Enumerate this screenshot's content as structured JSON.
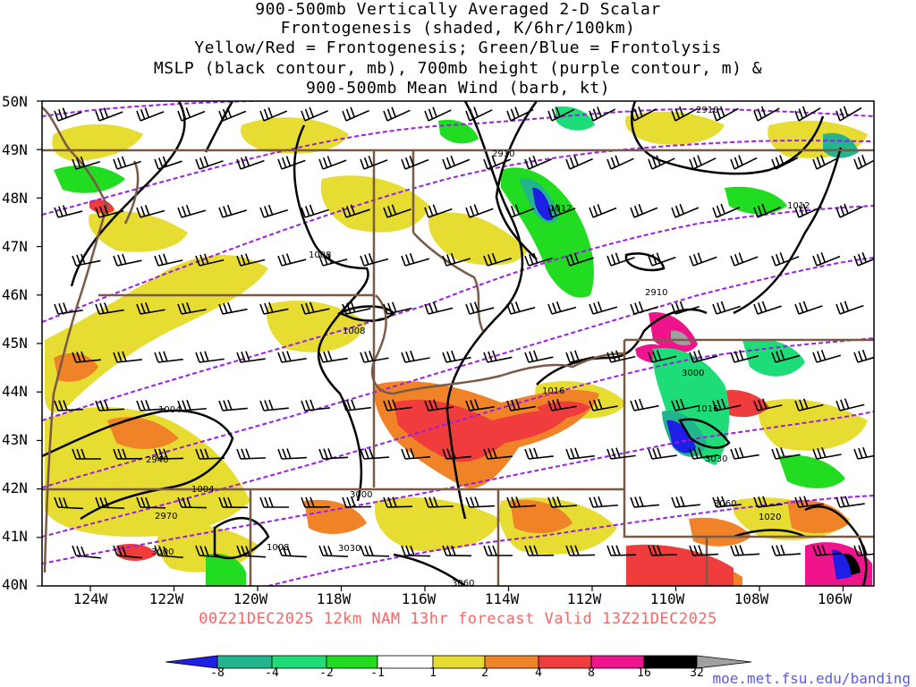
{
  "title_lines": [
    "900-500mb Vertically Averaged 2-D Scalar",
    "Frontogenesis (shaded, K/6hr/100km)",
    "Yellow/Red = Frontogenesis;  Green/Blue = Frontolysis",
    "MSLP (black contour, mb), 700mb height (purple contour, m) &",
    "900-500mb Mean Wind (barb, kt)"
  ],
  "lat_labels": [
    "50N",
    "49N",
    "48N",
    "47N",
    "46N",
    "45N",
    "44N",
    "43N",
    "42N",
    "41N",
    "40N"
  ],
  "lon_labels": [
    "124W",
    "122W",
    "120W",
    "118W",
    "116W",
    "114W",
    "112W",
    "110W",
    "108W",
    "106W"
  ],
  "footer": "00Z21DEC2025 12km NAM 13hr forecast Valid 13Z21DEC2025",
  "colorbar": {
    "labels": [
      "-8",
      "-4",
      "-2",
      "-1",
      "1",
      "2",
      "4",
      "8",
      "16",
      "32"
    ],
    "colors": [
      "#1e1ee6",
      "#22b48c",
      "#1edc78",
      "#22dc22",
      "#ffffff",
      "#e6dc32",
      "#f08228",
      "#f03c3c",
      "#f0148c",
      "#000000",
      "#a0a0a0"
    ]
  },
  "mslp_labels": [
    "1008",
    "1008",
    "1004",
    "1004",
    "1008",
    "1012",
    "1016",
    "1016",
    "1020",
    "1012"
  ],
  "height_labels": [
    "2910",
    "2910",
    "2910",
    "2940",
    "2970",
    "3000",
    "3000",
    "3000",
    "3030",
    "3030",
    "3060",
    "3060"
  ],
  "credit": "moe.met.fsu.edu/banding"
}
